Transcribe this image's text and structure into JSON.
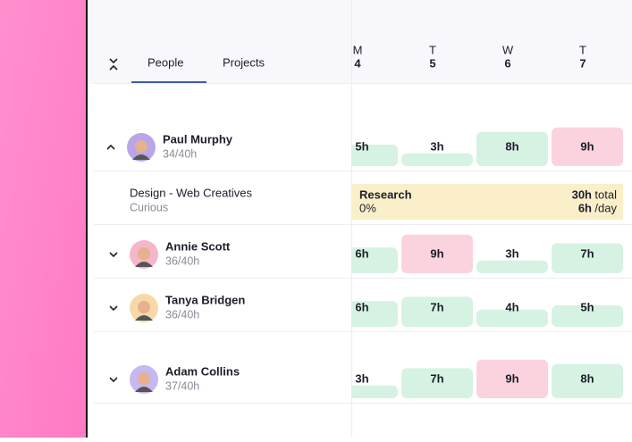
{
  "tabs": {
    "items": [
      "People",
      "Projects"
    ],
    "active": 0
  },
  "days": [
    {
      "letter": "M",
      "date": "4"
    },
    {
      "letter": "T",
      "date": "5"
    },
    {
      "letter": "W",
      "date": "6"
    },
    {
      "letter": "T",
      "date": "7"
    }
  ],
  "people": [
    {
      "name": "Paul Murphy",
      "hours": "34/40h",
      "expanded": true,
      "avatar": "#b9a6e8",
      "cells": [
        {
          "value": 5,
          "label": "5h",
          "color": "#d6f2e3"
        },
        {
          "value": 3,
          "label": "3h",
          "color": "#d6f2e3"
        },
        {
          "value": 8,
          "label": "8h",
          "color": "#d6f2e3"
        },
        {
          "value": 9,
          "label": "9h",
          "color": "#fbd3df"
        }
      ],
      "project": {
        "name": "Design - Web Creatives",
        "client": "Curious",
        "task": "Research",
        "progress": "0%",
        "total": "30h",
        "total_unit": "total",
        "per_day": "6h",
        "per_day_unit": "/day",
        "color": "#fbefc9"
      }
    },
    {
      "name": "Annie Scott",
      "hours": "36/40h",
      "expanded": false,
      "avatar": "#f4b6c8",
      "cells": [
        {
          "value": 6,
          "label": "6h",
          "color": "#d6f2e3"
        },
        {
          "value": 9,
          "label": "9h",
          "color": "#fbd3df"
        },
        {
          "value": 3,
          "label": "3h",
          "color": "#d6f2e3"
        },
        {
          "value": 7,
          "label": "7h",
          "color": "#d6f2e3"
        }
      ]
    },
    {
      "name": "Tanya Bridgen",
      "hours": "36/40h",
      "expanded": false,
      "avatar": "#f7d9a8",
      "cells": [
        {
          "value": 6,
          "label": "6h",
          "color": "#d6f2e3"
        },
        {
          "value": 7,
          "label": "7h",
          "color": "#d6f2e3"
        },
        {
          "value": 4,
          "label": "4h",
          "color": "#d6f2e3"
        },
        {
          "value": 5,
          "label": "5h",
          "color": "#d6f2e3"
        }
      ]
    },
    {
      "name": "Adam Collins",
      "hours": "37/40h",
      "expanded": false,
      "avatar": "#c6b8f0",
      "cells": [
        {
          "value": 3,
          "label": "3h",
          "color": "#d6f2e3"
        },
        {
          "value": 7,
          "label": "7h",
          "color": "#d6f2e3"
        },
        {
          "value": 9,
          "label": "9h",
          "color": "#fbd3df"
        },
        {
          "value": 8,
          "label": "8h",
          "color": "#d6f2e3"
        }
      ]
    }
  ]
}
